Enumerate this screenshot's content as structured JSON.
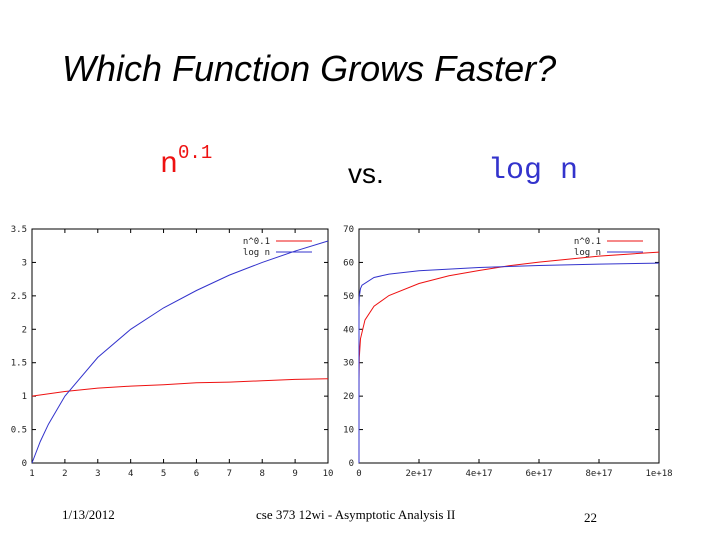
{
  "slide": {
    "title": "Which Function Grows Faster?",
    "compare_left_base": "n",
    "compare_left_exp": "0.1",
    "compare_vs": "vs.",
    "compare_right": "log n"
  },
  "footer": {
    "date": "1/13/2012",
    "course": "cse 373 12wi - Asymptotic Analysis II",
    "page": "22"
  },
  "colors": {
    "red_series": "#ee1111",
    "blue_series": "#3333cc"
  },
  "chart_data": [
    {
      "type": "line",
      "xlim": [
        1,
        10
      ],
      "ylim": [
        0,
        3.5
      ],
      "x_ticks": [
        1,
        2,
        3,
        4,
        5,
        6,
        7,
        8,
        9,
        10
      ],
      "x_tick_labels": [
        "1",
        "2",
        "3",
        "4",
        "5",
        "6",
        "7",
        "8",
        "9",
        "10"
      ],
      "y_ticks": [
        0,
        0.5,
        1,
        1.5,
        2,
        2.5,
        3,
        3.5
      ],
      "y_tick_labels": [
        "0",
        "0.5",
        "1",
        "1.5",
        "2",
        "2.5",
        "3",
        "3.5"
      ],
      "legend_position": "top-right",
      "grid": false,
      "series": [
        {
          "name": "n^0.1",
          "color": "#ee1111",
          "x": [
            1,
            2,
            3,
            4,
            5,
            6,
            7,
            8,
            9,
            10
          ],
          "y": [
            1.0,
            1.07,
            1.12,
            1.15,
            1.17,
            1.2,
            1.21,
            1.23,
            1.25,
            1.26
          ]
        },
        {
          "name": "log n",
          "color": "#3333cc",
          "x": [
            1,
            1.25,
            1.5,
            2,
            3,
            4,
            5,
            6,
            7,
            8,
            9,
            10
          ],
          "y": [
            0,
            0.32,
            0.58,
            1.0,
            1.58,
            2.0,
            2.32,
            2.58,
            2.81,
            3.0,
            3.17,
            3.32
          ]
        }
      ]
    },
    {
      "type": "line",
      "xlim": [
        0,
        1e+18
      ],
      "ylim": [
        0,
        70
      ],
      "x_ticks": [
        0,
        2e+17,
        4e+17,
        6e+17,
        8e+17,
        1e+18
      ],
      "x_tick_labels": [
        "0",
        "2e+17",
        "4e+17",
        "6e+17",
        "8e+17",
        "1e+18"
      ],
      "y_ticks": [
        0,
        10,
        20,
        30,
        40,
        50,
        60,
        70
      ],
      "y_tick_labels": [
        "0",
        "10",
        "20",
        "30",
        "40",
        "50",
        "60",
        "70"
      ],
      "legend_position": "top-right",
      "grid": false,
      "series": [
        {
          "name": "n^0.1",
          "color": "#ee1111",
          "x": [
            0,
            20000000000000.0,
            100000000000000.0,
            1000000000000000.0,
            5000000000000000.0,
            2e+16,
            5e+16,
            1e+17,
            2e+17,
            3e+17,
            4e+17,
            5e+17,
            6e+17,
            7e+17,
            8e+17,
            9e+17,
            1e+18
          ],
          "y": [
            0,
            21.7,
            25.1,
            31.6,
            37.2,
            42.8,
            46.9,
            50.1,
            53.7,
            56.0,
            57.6,
            59.0,
            60.1,
            61.0,
            61.9,
            62.5,
            63.1
          ]
        },
        {
          "name": "log n",
          "color": "#3333cc",
          "x": [
            0,
            1000.0,
            1000000.0,
            1000000000.0,
            1000000000000.0,
            100000000000000.0,
            1000000000000000.0,
            5000000000000000.0,
            1e+16,
            5e+16,
            1e+17,
            2e+17,
            4e+17,
            6e+17,
            8e+17,
            1e+18
          ],
          "y": [
            0,
            10,
            20,
            30,
            40,
            46.5,
            49.8,
            52.2,
            53.2,
            55.5,
            56.5,
            57.5,
            58.5,
            59.1,
            59.5,
            59.8
          ]
        }
      ]
    }
  ]
}
